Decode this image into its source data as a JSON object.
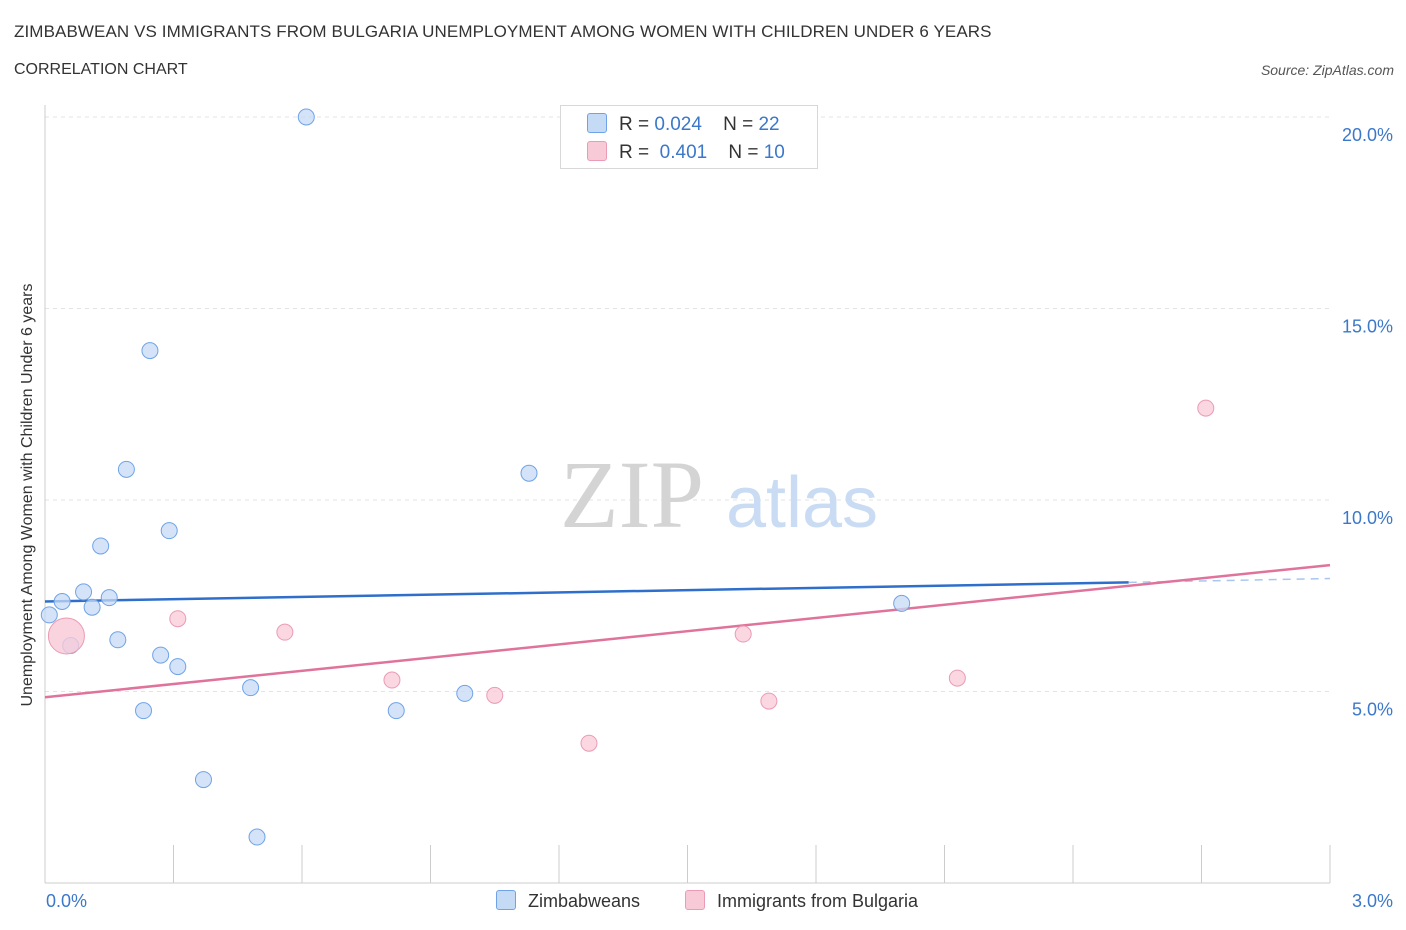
{
  "chart_data": {
    "type": "scatter",
    "title": "ZIMBABWEAN VS IMMIGRANTS FROM BULGARIA UNEMPLOYMENT AMONG WOMEN WITH CHILDREN UNDER 6 YEARS",
    "subtitle": "CORRELATION CHART",
    "source": "Source: ZipAtlas.com",
    "ylabel": "Unemployment Among Women with Children Under 6 years",
    "xlabel": "",
    "xlim": [
      0,
      3.0
    ],
    "ylim": [
      0,
      20.0
    ],
    "x_tick_labels": [
      {
        "value": 0,
        "label": "0.0%"
      },
      {
        "value": 3.0,
        "label": "3.0%"
      }
    ],
    "y_tick_labels": [
      {
        "value": 5,
        "label": "5.0%"
      },
      {
        "value": 10,
        "label": "10.0%"
      },
      {
        "value": 15,
        "label": "15.0%"
      },
      {
        "value": 20,
        "label": "20.0%"
      }
    ],
    "legend": [
      {
        "r_label": "R =",
        "r_value": "0.024",
        "n_label": "N =",
        "n_value": "22"
      },
      {
        "r_label": "R =",
        "r_value": "0.401",
        "n_label": "N =",
        "n_value": "10"
      }
    ],
    "watermark": {
      "zip": "ZIP",
      "atlas": "atlas"
    },
    "series": [
      {
        "name": "Zimbabweans",
        "color": "#6fa3e6",
        "fill": "#c5daf5",
        "line_color": "#2f6fcb",
        "trend": {
          "x0": 0,
          "y0": 7.35,
          "x1": 2.53,
          "y1": 7.85,
          "dash_to_x": 3.0,
          "dash_to_y": 7.95
        },
        "points": [
          {
            "x": 0.01,
            "y": 7.0
          },
          {
            "x": 0.04,
            "y": 7.35
          },
          {
            "x": 0.06,
            "y": 6.2
          },
          {
            "x": 0.09,
            "y": 7.6
          },
          {
            "x": 0.11,
            "y": 7.2
          },
          {
            "x": 0.13,
            "y": 8.8
          },
          {
            "x": 0.15,
            "y": 7.45
          },
          {
            "x": 0.17,
            "y": 6.35
          },
          {
            "x": 0.19,
            "y": 10.8
          },
          {
            "x": 0.23,
            "y": 4.5
          },
          {
            "x": 0.245,
            "y": 13.9
          },
          {
            "x": 0.27,
            "y": 5.95
          },
          {
            "x": 0.29,
            "y": 9.2
          },
          {
            "x": 0.31,
            "y": 5.65
          },
          {
            "x": 0.37,
            "y": 2.7
          },
          {
            "x": 0.48,
            "y": 5.1
          },
          {
            "x": 0.495,
            "y": 1.2
          },
          {
            "x": 0.61,
            "y": 20.0
          },
          {
            "x": 0.82,
            "y": 4.5
          },
          {
            "x": 0.98,
            "y": 4.95
          },
          {
            "x": 1.13,
            "y": 10.7
          },
          {
            "x": 2.0,
            "y": 7.3
          }
        ]
      },
      {
        "name": "Immigrants from Bulgaria",
        "color": "#eb9bb5",
        "fill": "#f8c9d7",
        "line_color": "#e0739b",
        "trend": {
          "x0": 0,
          "y0": 4.85,
          "x1": 3.0,
          "y1": 8.3
        },
        "points": [
          {
            "x": 0.05,
            "y": 6.45,
            "big": true
          },
          {
            "x": 0.31,
            "y": 6.9
          },
          {
            "x": 0.56,
            "y": 6.55
          },
          {
            "x": 0.81,
            "y": 5.3
          },
          {
            "x": 1.05,
            "y": 4.9
          },
          {
            "x": 1.27,
            "y": 3.65
          },
          {
            "x": 1.63,
            "y": 6.5
          },
          {
            "x": 1.69,
            "y": 4.75
          },
          {
            "x": 2.13,
            "y": 5.35
          },
          {
            "x": 2.71,
            "y": 12.4
          }
        ]
      }
    ]
  }
}
